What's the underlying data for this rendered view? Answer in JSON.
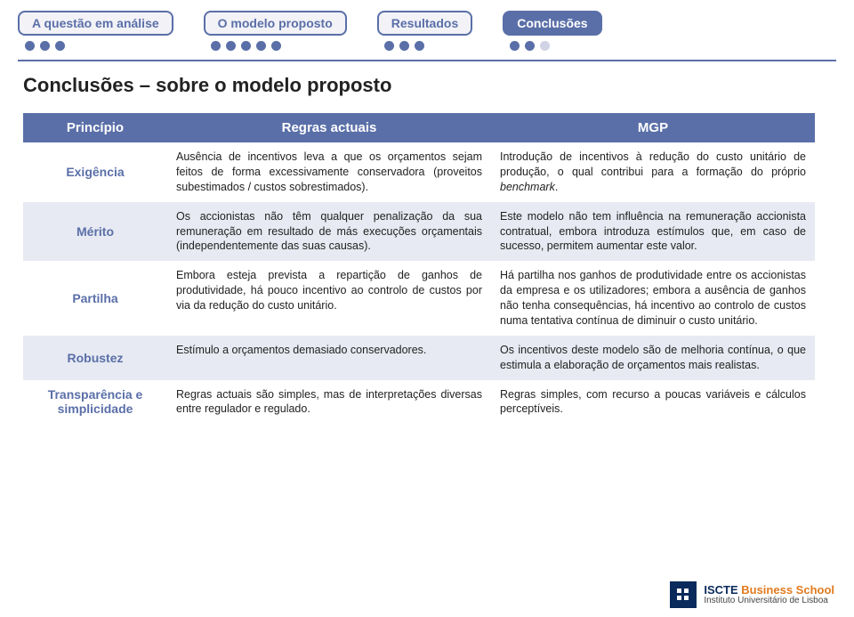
{
  "colors": {
    "accent": "#5a6fa8",
    "accent_light_bg": "#e7eaf2",
    "pill_bg": "#f2f2f7",
    "dot_off": "#d0d4e4",
    "text": "#222222",
    "white": "#ffffff",
    "logo_blue": "#0a2a5c",
    "logo_orange": "#e07b1f"
  },
  "nav": {
    "items": [
      {
        "label": "A questão em análise",
        "active": false,
        "dots": 3,
        "dots_filled": 3
      },
      {
        "label": "O modelo proposto",
        "active": false,
        "dots": 5,
        "dots_filled": 5
      },
      {
        "label": "Resultados",
        "active": false,
        "dots": 3,
        "dots_filled": 3
      },
      {
        "label": "Conclusões",
        "active": true,
        "dots": 3,
        "dots_filled": 2
      }
    ]
  },
  "title": "Conclusões – sobre o modelo proposto",
  "table": {
    "headers": [
      "Princípio",
      "Regras actuais",
      "MGP"
    ],
    "rows": [
      {
        "principle": "Exigência",
        "current": "Ausência de incentivos leva a que os orçamentos sejam feitos de forma excessivamente conservadora (proveitos subestimados / custos sobrestimados).",
        "mgp": "Introdução de incentivos à redução do custo unitário de produção, o qual contribui para a formação do próprio <em class='bm'>benchmark</em>."
      },
      {
        "principle": "Mérito",
        "current": "Os accionistas não têm qualquer penalização da sua remuneração em resultado de más execuções orçamentais (independentemente das suas causas).",
        "mgp": "Este modelo não tem influência na remuneração accionista contratual, embora introduza estímulos que, em caso de sucesso, permitem aumentar este valor."
      },
      {
        "principle": "Partilha",
        "current": "Embora esteja prevista a repartição de ganhos de produtividade, há pouco incentivo ao controlo de custos por via da redução do custo unitário.",
        "mgp": "Há partilha nos ganhos de produtividade entre os accionistas da empresa e os utilizadores; embora a ausência de ganhos não tenha consequências, há incentivo ao controlo de custos numa tentativa contínua de diminuir o custo unitário."
      },
      {
        "principle": "Robustez",
        "current": "Estímulo a orçamentos demasiado conservadores.",
        "mgp": "Os incentivos deste modelo são de melhoria contínua, o que estimula a elaboração de orçamentos mais realistas."
      },
      {
        "principle": "Transparência e simplicidade",
        "current": "Regras actuais são simples, mas de interpretações diversas entre regulador e regulado.",
        "mgp": "Regras simples, com recurso a poucas variáveis e cálculos perceptíveis."
      }
    ]
  },
  "footer": {
    "logo_square_text": "",
    "line1_a": "ISCTE ",
    "line1_b": "Business School",
    "line2": "Instituto Universitário de Lisboa"
  }
}
